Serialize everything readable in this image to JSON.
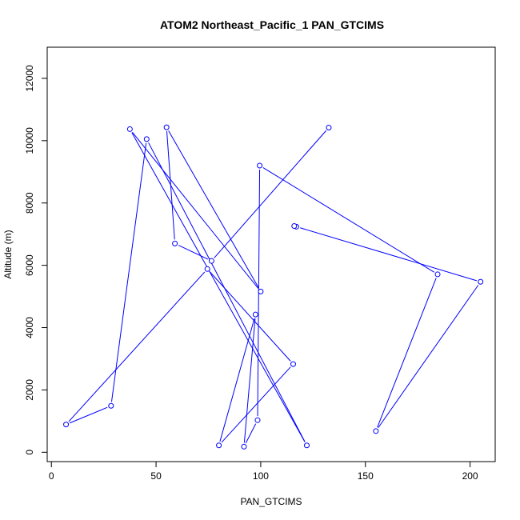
{
  "chart_data": {
    "type": "line",
    "title": "ATOM2 Northeast_Pacific_1 PAN_GTCIMS",
    "xlabel": "PAN_GTCIMS",
    "ylabel": "Altitude (m)",
    "xlim": [
      -2,
      212
    ],
    "ylim": [
      -300,
      13000
    ],
    "xticks": [
      0,
      50,
      100,
      150,
      200
    ],
    "yticks": [
      0,
      2000,
      4000,
      6000,
      8000,
      10000,
      12000
    ],
    "grid": false,
    "legend": "none",
    "point_style": "open-circle",
    "color": "#0000ff",
    "series": [
      {
        "points": [
          {
            "x": 132.5,
            "y": 10420
          },
          {
            "x": 76.5,
            "y": 6140
          },
          {
            "x": 59.0,
            "y": 6700
          },
          {
            "x": 55.0,
            "y": 10430
          },
          {
            "x": 100.0,
            "y": 5160
          },
          {
            "x": 37.5,
            "y": 10370
          },
          {
            "x": 122.0,
            "y": 220
          },
          {
            "x": 45.5,
            "y": 10050
          },
          {
            "x": 28.5,
            "y": 1490
          },
          {
            "x": 7.0,
            "y": 890
          },
          {
            "x": 74.5,
            "y": 5880
          },
          {
            "x": 115.5,
            "y": 2830
          },
          {
            "x": 80.0,
            "y": 220
          },
          {
            "x": 97.5,
            "y": 4420
          },
          {
            "x": 92.0,
            "y": 180
          },
          {
            "x": 98.5,
            "y": 1030
          },
          {
            "x": 99.5,
            "y": 9200
          },
          {
            "x": 184.5,
            "y": 5710
          },
          {
            "x": 155.0,
            "y": 680
          },
          {
            "x": 205.0,
            "y": 5470
          },
          {
            "x": 117.0,
            "y": 7240
          },
          {
            "x": 116.0,
            "y": 7260
          }
        ]
      }
    ]
  }
}
